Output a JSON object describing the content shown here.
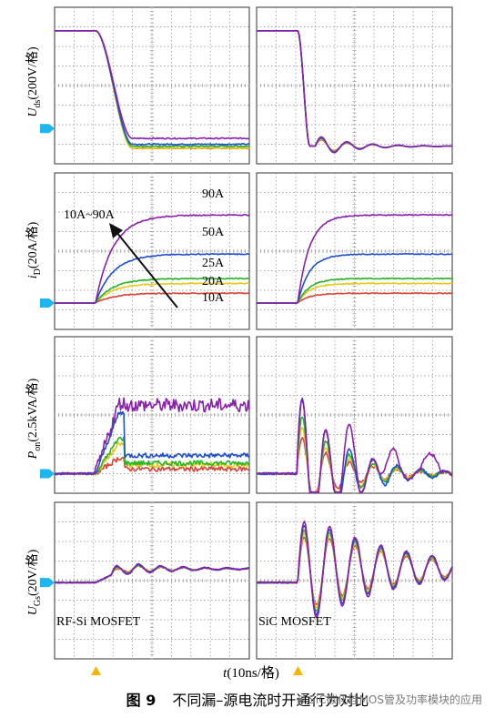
{
  "figure": {
    "caption_number": "图 9",
    "caption_text": "不同漏–源电流时开通行为对比",
    "watermark": "SiC碳化硅MOS管及功率模块的应用",
    "xlabel_var": "t",
    "xlabel_rest": "(10ns/格)",
    "ylabels": [
      {
        "var": "U",
        "sub": "ds",
        "rest": "(200V/格)"
      },
      {
        "var": "i",
        "sub": "D",
        "rest": "(20A/格)"
      },
      {
        "var": "P",
        "sub": "on",
        "rest": "(2.5kVA/格)"
      },
      {
        "var": "U",
        "sub": "Gs",
        "rest": "(20V/格)"
      }
    ],
    "panel_labels": {
      "left": "RF-Si MOSFET",
      "right": "SiC MOSFET"
    },
    "current_labels": [
      "90A",
      "50A",
      "25A",
      "20A",
      "10A"
    ],
    "arrow_label": "10A~90A",
    "colors": {
      "90A": "#8a1fb0",
      "50A": "#1f4fd1",
      "25A": "#28b428",
      "20A": "#e8c81a",
      "10A": "#d8443a",
      "grid": "#8c8c8c",
      "marker": "#1fb6f0",
      "trigger": "#f2b705"
    }
  },
  "chart_data": {
    "type": "line",
    "grid": true,
    "x_divisions": 10,
    "y_divisions": 8,
    "xlabel": "t(10ns/格)",
    "series_names": [
      "10A",
      "20A",
      "25A",
      "50A",
      "90A"
    ],
    "rows": [
      {
        "ylabel": "Uds(200V/格)",
        "left": {
          "initial_div": 6.8,
          "final_div": {
            "10A": 0.8,
            "20A": 0.8,
            "25A": 0.9,
            "50A": 1.0,
            "90A": 1.3
          }
        },
        "right": {
          "initial_div": 6.8,
          "final_div": {
            "10A": 0.9,
            "20A": 0.9,
            "25A": 0.9,
            "50A": 0.9,
            "90A": 0.9
          }
        }
      },
      {
        "ylabel": "iD(20A/格)",
        "left": {
          "final_div": {
            "10A": 0.5,
            "20A": 1.0,
            "25A": 1.25,
            "50A": 2.5,
            "90A": 4.5
          }
        },
        "right": {
          "final_div": {
            "10A": 0.5,
            "20A": 1.0,
            "25A": 1.25,
            "50A": 2.5,
            "90A": 4.5
          }
        }
      },
      {
        "ylabel": "Pon(2.5kVA/格)",
        "left": {
          "peak_div": {
            "10A": 0.8,
            "20A": 1.5,
            "25A": 1.8,
            "50A": 3.1,
            "90A": 3.8
          }
        },
        "right": {
          "peak_div": {
            "10A": 2.0,
            "20A": 2.6,
            "25A": 3.2,
            "50A": 4.2,
            "90A": 4.3
          }
        }
      },
      {
        "ylabel": "UGs(20V/格)",
        "left": {
          "final_div": 0.7
        },
        "right": {
          "final_div": 0.7
        }
      }
    ]
  }
}
